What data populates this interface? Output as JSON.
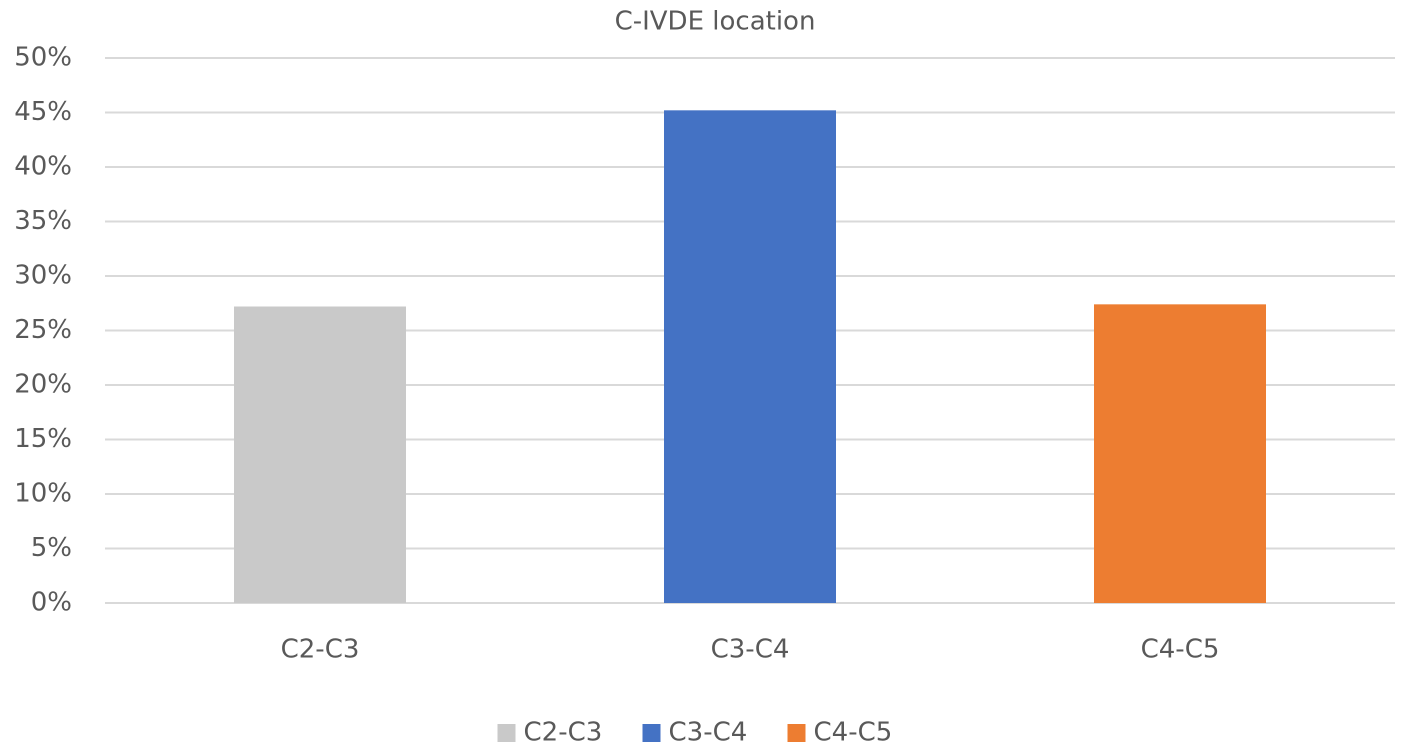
{
  "chart_data": {
    "type": "bar",
    "title": "C-IVDE location",
    "categories": [
      "C2-C3",
      "C3-C4",
      "C4-C5"
    ],
    "values": [
      27.2,
      45.2,
      27.4
    ],
    "colors": [
      "#c9c9c9",
      "#4472c4",
      "#ed7d31"
    ],
    "ylim": [
      0,
      50
    ],
    "yticks": [
      {
        "value": 0,
        "label": "0%"
      },
      {
        "value": 5,
        "label": "5%"
      },
      {
        "value": 10,
        "label": "10%"
      },
      {
        "value": 15,
        "label": "15%"
      },
      {
        "value": 20,
        "label": "20%"
      },
      {
        "value": 25,
        "label": "25%"
      },
      {
        "value": 30,
        "label": "30%"
      },
      {
        "value": 35,
        "label": "35%"
      },
      {
        "value": 40,
        "label": "40%"
      },
      {
        "value": 45,
        "label": "45%"
      },
      {
        "value": 50,
        "label": "50%"
      }
    ],
    "grid": true,
    "legend": "bottom"
  }
}
